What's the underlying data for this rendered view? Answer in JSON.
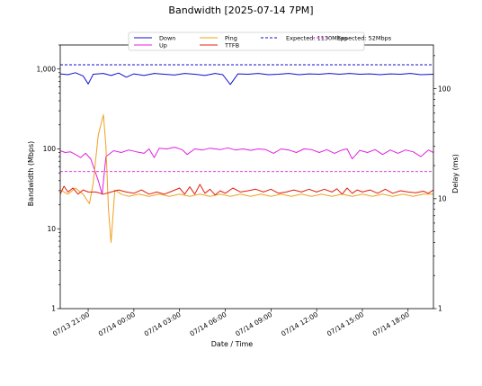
{
  "chart_data": {
    "type": "line",
    "title": "Bandwidth [2025-07-14 7PM]",
    "xlabel": "Date / Time",
    "ylabel_left": "Bandwidth (Mbps)",
    "ylabel_right": "Delay (ms)",
    "yscale_left": "log",
    "yscale_right": "log",
    "ylim_left": [
      1,
      2000
    ],
    "ylim_right": [
      1,
      250
    ],
    "xlim": [
      "2025-07-13T19:10",
      "2025-07-14T19:40"
    ],
    "left_tick_labels": [
      "1",
      "10",
      "100",
      "1,000"
    ],
    "right_tick_labels": [
      "1",
      "10",
      "100"
    ],
    "x_tick_labels": [
      "07/13 21:00",
      "07/14 00:00",
      "07/14 03:00",
      "07/14 06:00",
      "07/14 09:00",
      "07/14 12:00",
      "07/14 15:00",
      "07/14 18:00"
    ],
    "x_tick_times": [
      "2025-07-13T21:00",
      "2025-07-14T00:00",
      "2025-07-14T03:00",
      "2025-07-14T06:00",
      "2025-07-14T09:00",
      "2025-07-14T12:00",
      "2025-07-14T15:00",
      "2025-07-14T18:00"
    ],
    "grid": false,
    "legend_position": "top-center",
    "legend": [
      {
        "label": "Down",
        "color": "#1010d0",
        "style": "solid"
      },
      {
        "label": "Up",
        "color": "#e020e0",
        "style": "solid"
      },
      {
        "label": "Ping",
        "color": "#f0a020",
        "style": "solid"
      },
      {
        "label": "TTFB",
        "color": "#e02010",
        "style": "solid"
      },
      {
        "label": "Expected: 1130Mbps",
        "color": "#1010d0",
        "style": "dashed"
      },
      {
        "label": "Expected: 52Mbps",
        "color": "#e020e0",
        "style": "dashed"
      }
    ],
    "reference_lines": [
      {
        "axis": "left",
        "value": 1130,
        "color": "#1010d0"
      },
      {
        "axis": "left",
        "value": 52,
        "color": "#e020e0"
      }
    ],
    "series": [
      {
        "name": "Down",
        "axis": "left",
        "color": "#1010d0",
        "points": [
          [
            "2025-07-13T19:10",
            870
          ],
          [
            "2025-07-13T19:40",
            850
          ],
          [
            "2025-07-13T20:10",
            900
          ],
          [
            "2025-07-13T20:40",
            820
          ],
          [
            "2025-07-13T21:00",
            650
          ],
          [
            "2025-07-13T21:20",
            860
          ],
          [
            "2025-07-13T22:00",
            880
          ],
          [
            "2025-07-13T22:30",
            830
          ],
          [
            "2025-07-13T23:00",
            890
          ],
          [
            "2025-07-13T23:30",
            790
          ],
          [
            "2025-07-14T00:00",
            870
          ],
          [
            "2025-07-14T00:40",
            830
          ],
          [
            "2025-07-14T01:20",
            880
          ],
          [
            "2025-07-14T02:00",
            860
          ],
          [
            "2025-07-14T02:40",
            840
          ],
          [
            "2025-07-14T03:20",
            880
          ],
          [
            "2025-07-14T04:00",
            860
          ],
          [
            "2025-07-14T04:40",
            830
          ],
          [
            "2025-07-14T05:20",
            880
          ],
          [
            "2025-07-14T05:50",
            850
          ],
          [
            "2025-07-14T06:20",
            640
          ],
          [
            "2025-07-14T06:50",
            870
          ],
          [
            "2025-07-14T07:30",
            860
          ],
          [
            "2025-07-14T08:10",
            880
          ],
          [
            "2025-07-14T08:50",
            850
          ],
          [
            "2025-07-14T09:30",
            860
          ],
          [
            "2025-07-14T10:10",
            880
          ],
          [
            "2025-07-14T10:50",
            850
          ],
          [
            "2025-07-14T11:30",
            870
          ],
          [
            "2025-07-14T12:10",
            860
          ],
          [
            "2025-07-14T12:50",
            880
          ],
          [
            "2025-07-14T13:30",
            860
          ],
          [
            "2025-07-14T14:10",
            880
          ],
          [
            "2025-07-14T14:50",
            860
          ],
          [
            "2025-07-14T15:30",
            870
          ],
          [
            "2025-07-14T16:10",
            850
          ],
          [
            "2025-07-14T16:50",
            870
          ],
          [
            "2025-07-14T17:30",
            860
          ],
          [
            "2025-07-14T18:10",
            880
          ],
          [
            "2025-07-14T18:50",
            850
          ],
          [
            "2025-07-14T19:40",
            860
          ]
        ]
      },
      {
        "name": "Up",
        "axis": "left",
        "color": "#e020e0",
        "points": [
          [
            "2025-07-13T19:10",
            95
          ],
          [
            "2025-07-13T19:30",
            90
          ],
          [
            "2025-07-13T19:50",
            92
          ],
          [
            "2025-07-13T20:10",
            85
          ],
          [
            "2025-07-13T20:30",
            78
          ],
          [
            "2025-07-13T20:50",
            88
          ],
          [
            "2025-07-13T21:10",
            75
          ],
          [
            "2025-07-13T21:40",
            40
          ],
          [
            "2025-07-13T21:55",
            27
          ],
          [
            "2025-07-13T22:10",
            80
          ],
          [
            "2025-07-13T22:40",
            95
          ],
          [
            "2025-07-13T23:10",
            90
          ],
          [
            "2025-07-13T23:40",
            97
          ],
          [
            "2025-07-14T00:10",
            92
          ],
          [
            "2025-07-14T00:40",
            88
          ],
          [
            "2025-07-14T01:00",
            100
          ],
          [
            "2025-07-14T01:20",
            78
          ],
          [
            "2025-07-14T01:40",
            102
          ],
          [
            "2025-07-14T02:10",
            100
          ],
          [
            "2025-07-14T02:40",
            105
          ],
          [
            "2025-07-14T03:10",
            98
          ],
          [
            "2025-07-14T03:30",
            85
          ],
          [
            "2025-07-14T04:00",
            100
          ],
          [
            "2025-07-14T04:30",
            97
          ],
          [
            "2025-07-14T05:00",
            102
          ],
          [
            "2025-07-14T05:40",
            98
          ],
          [
            "2025-07-14T06:10",
            103
          ],
          [
            "2025-07-14T06:40",
            97
          ],
          [
            "2025-07-14T07:10",
            100
          ],
          [
            "2025-07-14T07:40",
            96
          ],
          [
            "2025-07-14T08:10",
            100
          ],
          [
            "2025-07-14T08:40",
            98
          ],
          [
            "2025-07-14T09:10",
            88
          ],
          [
            "2025-07-14T09:40",
            100
          ],
          [
            "2025-07-14T10:10",
            97
          ],
          [
            "2025-07-14T10:40",
            90
          ],
          [
            "2025-07-14T11:10",
            100
          ],
          [
            "2025-07-14T11:40",
            98
          ],
          [
            "2025-07-14T12:10",
            90
          ],
          [
            "2025-07-14T12:40",
            98
          ],
          [
            "2025-07-14T13:10",
            88
          ],
          [
            "2025-07-14T13:40",
            97
          ],
          [
            "2025-07-14T14:00",
            100
          ],
          [
            "2025-07-14T14:20",
            75
          ],
          [
            "2025-07-14T14:50",
            96
          ],
          [
            "2025-07-14T15:20",
            90
          ],
          [
            "2025-07-14T15:50",
            98
          ],
          [
            "2025-07-14T16:20",
            85
          ],
          [
            "2025-07-14T16:50",
            97
          ],
          [
            "2025-07-14T17:20",
            88
          ],
          [
            "2025-07-14T17:50",
            97
          ],
          [
            "2025-07-14T18:20",
            92
          ],
          [
            "2025-07-14T18:50",
            80
          ],
          [
            "2025-07-14T19:20",
            97
          ],
          [
            "2025-07-14T19:40",
            90
          ]
        ]
      },
      {
        "name": "Ping",
        "axis": "right",
        "color": "#f0a020",
        "points": [
          [
            "2025-07-13T19:10",
            12
          ],
          [
            "2025-07-13T19:40",
            11
          ],
          [
            "2025-07-13T20:10",
            12.5
          ],
          [
            "2025-07-13T20:40",
            11
          ],
          [
            "2025-07-13T21:05",
            9
          ],
          [
            "2025-07-13T21:20",
            14
          ],
          [
            "2025-07-13T21:40",
            38
          ],
          [
            "2025-07-13T22:00",
            58
          ],
          [
            "2025-07-13T22:10",
            30
          ],
          [
            "2025-07-13T22:20",
            8
          ],
          [
            "2025-07-13T22:30",
            4
          ],
          [
            "2025-07-13T22:45",
            12
          ],
          [
            "2025-07-13T23:10",
            11
          ],
          [
            "2025-07-13T23:40",
            10.5
          ],
          [
            "2025-07-14T00:20",
            11
          ],
          [
            "2025-07-14T01:00",
            10.5
          ],
          [
            "2025-07-14T01:40",
            11
          ],
          [
            "2025-07-14T02:20",
            10.5
          ],
          [
            "2025-07-14T03:00",
            11
          ],
          [
            "2025-07-14T03:40",
            10.5
          ],
          [
            "2025-07-14T04:20",
            11
          ],
          [
            "2025-07-14T05:00",
            10.5
          ],
          [
            "2025-07-14T05:40",
            11
          ],
          [
            "2025-07-14T06:20",
            10.5
          ],
          [
            "2025-07-14T07:00",
            11
          ],
          [
            "2025-07-14T07:40",
            10.5
          ],
          [
            "2025-07-14T08:20",
            11
          ],
          [
            "2025-07-14T09:00",
            10.5
          ],
          [
            "2025-07-14T09:40",
            11
          ],
          [
            "2025-07-14T10:20",
            10.5
          ],
          [
            "2025-07-14T11:00",
            11
          ],
          [
            "2025-07-14T11:40",
            10.5
          ],
          [
            "2025-07-14T12:20",
            11
          ],
          [
            "2025-07-14T13:00",
            10.5
          ],
          [
            "2025-07-14T13:40",
            11
          ],
          [
            "2025-07-14T14:20",
            10.5
          ],
          [
            "2025-07-14T15:00",
            11
          ],
          [
            "2025-07-14T15:40",
            10.5
          ],
          [
            "2025-07-14T16:20",
            11
          ],
          [
            "2025-07-14T17:00",
            10.5
          ],
          [
            "2025-07-14T17:40",
            11
          ],
          [
            "2025-07-14T18:20",
            10.5
          ],
          [
            "2025-07-14T19:00",
            11
          ],
          [
            "2025-07-14T19:40",
            11
          ]
        ]
      },
      {
        "name": "TTFB",
        "axis": "right",
        "color": "#e02010",
        "points": [
          [
            "2025-07-13T19:10",
            11
          ],
          [
            "2025-07-13T19:25",
            13
          ],
          [
            "2025-07-13T19:40",
            11.5
          ],
          [
            "2025-07-13T20:00",
            12.5
          ],
          [
            "2025-07-13T20:20",
            11
          ],
          [
            "2025-07-13T20:40",
            12
          ],
          [
            "2025-07-13T21:00",
            11.5
          ],
          [
            "2025-07-13T21:30",
            11.5
          ],
          [
            "2025-07-13T22:00",
            11
          ],
          [
            "2025-07-13T22:30",
            11.5
          ],
          [
            "2025-07-13T23:00",
            12
          ],
          [
            "2025-07-13T23:30",
            11.5
          ],
          [
            "2025-07-14T00:00",
            11.2
          ],
          [
            "2025-07-14T00:30",
            12
          ],
          [
            "2025-07-14T01:00",
            11
          ],
          [
            "2025-07-14T01:30",
            11.5
          ],
          [
            "2025-07-14T02:00",
            11
          ],
          [
            "2025-07-14T02:30",
            11.7
          ],
          [
            "2025-07-14T03:00",
            12.5
          ],
          [
            "2025-07-14T03:20",
            11
          ],
          [
            "2025-07-14T03:40",
            12.8
          ],
          [
            "2025-07-14T04:00",
            11
          ],
          [
            "2025-07-14T04:20",
            13.5
          ],
          [
            "2025-07-14T04:40",
            11.2
          ],
          [
            "2025-07-14T05:00",
            12.2
          ],
          [
            "2025-07-14T05:20",
            10.8
          ],
          [
            "2025-07-14T05:40",
            11.8
          ],
          [
            "2025-07-14T06:00",
            11.2
          ],
          [
            "2025-07-14T06:30",
            12.5
          ],
          [
            "2025-07-14T07:00",
            11.5
          ],
          [
            "2025-07-14T07:30",
            11.8
          ],
          [
            "2025-07-14T08:00",
            12.2
          ],
          [
            "2025-07-14T08:30",
            11.5
          ],
          [
            "2025-07-14T09:00",
            12.2
          ],
          [
            "2025-07-14T09:30",
            11.2
          ],
          [
            "2025-07-14T10:00",
            11.5
          ],
          [
            "2025-07-14T10:30",
            12
          ],
          [
            "2025-07-14T11:00",
            11.5
          ],
          [
            "2025-07-14T11:30",
            12.2
          ],
          [
            "2025-07-14T12:00",
            11.5
          ],
          [
            "2025-07-14T12:30",
            12.2
          ],
          [
            "2025-07-14T13:00",
            11.5
          ],
          [
            "2025-07-14T13:20",
            12.3
          ],
          [
            "2025-07-14T13:40",
            11
          ],
          [
            "2025-07-14T14:00",
            12.5
          ],
          [
            "2025-07-14T14:20",
            11.2
          ],
          [
            "2025-07-14T14:40",
            12
          ],
          [
            "2025-07-14T15:00",
            11.5
          ],
          [
            "2025-07-14T15:30",
            12
          ],
          [
            "2025-07-14T16:00",
            11.2
          ],
          [
            "2025-07-14T16:30",
            12.2
          ],
          [
            "2025-07-14T17:00",
            11.2
          ],
          [
            "2025-07-14T17:30",
            11.8
          ],
          [
            "2025-07-14T18:00",
            11.5
          ],
          [
            "2025-07-14T18:30",
            11.3
          ],
          [
            "2025-07-14T19:00",
            11.7
          ],
          [
            "2025-07-14T19:20",
            11.2
          ],
          [
            "2025-07-14T19:40",
            12
          ]
        ]
      }
    ]
  }
}
